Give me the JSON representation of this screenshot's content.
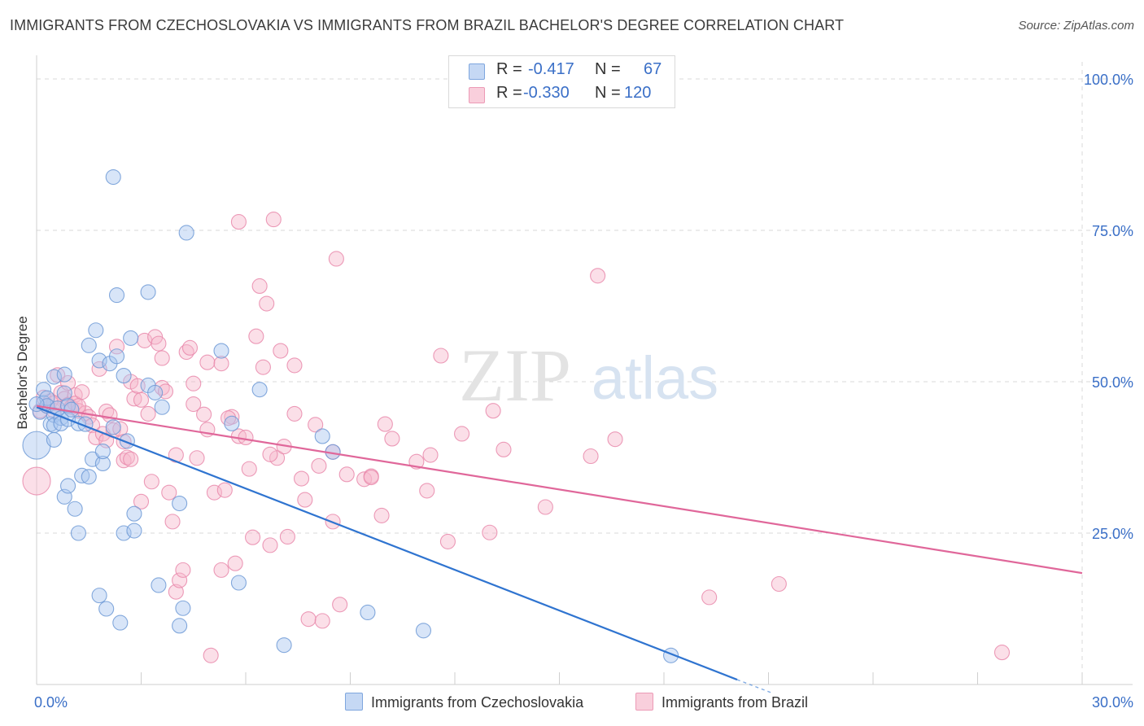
{
  "title": "IMMIGRANTS FROM CZECHOSLOVAKIA VS IMMIGRANTS FROM BRAZIL BACHELOR'S DEGREE CORRELATION CHART",
  "source": "Source: ZipAtlas.com",
  "watermark": {
    "zip": "ZIP",
    "atlas": "atlas"
  },
  "colors": {
    "blue_fill": "#a9c6ef",
    "blue_line": "#2f74d0",
    "blue_text": "#3a6fc7",
    "pink_fill": "#f6b9cc",
    "pink_line": "#e0679a",
    "grid": "#d8d8d8"
  },
  "legend": {
    "r_label": "R =",
    "n_label": "N =",
    "series": [
      {
        "r": "-0.417",
        "n": "67"
      },
      {
        "r": "-0.330",
        "n": "120"
      }
    ]
  },
  "chart_data": {
    "type": "scatter",
    "title": "IMMIGRANTS FROM CZECHOSLOVAKIA VS IMMIGRANTS FROM BRAZIL BACHELOR'S DEGREE CORRELATION CHART",
    "xlabel": "",
    "ylabel": "Bachelor's Degree",
    "xlim": [
      0,
      30
    ],
    "ylim": [
      0,
      100
    ],
    "x_tick_labels": [
      "0.0%",
      "30.0%"
    ],
    "y_tick_labels": [
      "25.0%",
      "50.0%",
      "75.0%",
      "100.0%"
    ],
    "y_ticks": [
      25,
      50,
      75,
      100
    ],
    "series": [
      {
        "name": "Immigrants from Czechoslovakia",
        "color": "#a9c6ef",
        "trend": {
          "x": [
            0,
            20.1
          ],
          "y": [
            45.8,
            0.8
          ]
        },
        "points": [
          [
            0.0,
            39.5
          ],
          [
            0.1,
            45.0
          ],
          [
            0.2,
            48.7
          ],
          [
            0.2,
            46.5
          ],
          [
            0.3,
            47.3
          ],
          [
            0.3,
            46.0
          ],
          [
            0.4,
            43.0
          ],
          [
            0.5,
            44.5
          ],
          [
            0.5,
            42.8
          ],
          [
            0.5,
            40.4
          ],
          [
            0.5,
            50.8
          ],
          [
            0.6,
            45.6
          ],
          [
            0.7,
            44.0
          ],
          [
            0.7,
            43.1
          ],
          [
            0.8,
            48.1
          ],
          [
            0.8,
            51.2
          ],
          [
            0.8,
            31.0
          ],
          [
            0.9,
            46.0
          ],
          [
            0.9,
            43.8
          ],
          [
            0.9,
            32.8
          ],
          [
            1.0,
            45.4
          ],
          [
            1.1,
            29.0
          ],
          [
            1.2,
            25.0
          ],
          [
            1.2,
            43.1
          ],
          [
            1.3,
            34.5
          ],
          [
            1.4,
            43.0
          ],
          [
            1.5,
            56.0
          ],
          [
            1.5,
            34.3
          ],
          [
            1.6,
            37.2
          ],
          [
            1.7,
            58.5
          ],
          [
            1.8,
            53.5
          ],
          [
            1.8,
            14.7
          ],
          [
            1.9,
            36.5
          ],
          [
            1.9,
            38.5
          ],
          [
            2.0,
            12.5
          ],
          [
            2.1,
            53.0
          ],
          [
            2.2,
            83.8
          ],
          [
            2.2,
            42.5
          ],
          [
            2.3,
            54.2
          ],
          [
            2.3,
            64.3
          ],
          [
            2.4,
            10.2
          ],
          [
            2.5,
            25.0
          ],
          [
            2.5,
            51.0
          ],
          [
            2.6,
            40.2
          ],
          [
            2.7,
            57.2
          ],
          [
            2.8,
            28.2
          ],
          [
            2.8,
            25.4
          ],
          [
            3.2,
            49.4
          ],
          [
            3.2,
            64.8
          ],
          [
            3.4,
            48.2
          ],
          [
            3.5,
            16.4
          ],
          [
            3.6,
            45.8
          ],
          [
            4.1,
            29.9
          ],
          [
            4.1,
            9.7
          ],
          [
            4.2,
            12.6
          ],
          [
            4.3,
            74.6
          ],
          [
            5.3,
            55.1
          ],
          [
            5.6,
            43.1
          ],
          [
            5.8,
            16.8
          ],
          [
            6.4,
            48.7
          ],
          [
            7.1,
            6.5
          ],
          [
            8.2,
            41.0
          ],
          [
            8.5,
            38.4
          ],
          [
            9.5,
            11.9
          ],
          [
            11.1,
            8.9
          ],
          [
            18.2,
            4.8
          ],
          [
            0.0,
            46.3
          ]
        ]
      },
      {
        "name": "Immigrants from Brazil",
        "color": "#f6b9cc",
        "trend": {
          "x": [
            0,
            30
          ],
          "y": [
            46.0,
            18.4
          ]
        },
        "points": [
          [
            0.0,
            33.6
          ],
          [
            0.1,
            45.2
          ],
          [
            0.2,
            47.4
          ],
          [
            0.3,
            46.0
          ],
          [
            0.4,
            46.8
          ],
          [
            0.5,
            45.2
          ],
          [
            0.6,
            51.1
          ],
          [
            0.7,
            48.2
          ],
          [
            0.8,
            47.2
          ],
          [
            0.9,
            49.8
          ],
          [
            0.9,
            46.2
          ],
          [
            1.0,
            45.8
          ],
          [
            1.1,
            47.8
          ],
          [
            1.1,
            46.4
          ],
          [
            1.2,
            45.2
          ],
          [
            1.3,
            48.3
          ],
          [
            1.4,
            44.8
          ],
          [
            1.5,
            44.2
          ],
          [
            1.6,
            42.8
          ],
          [
            1.7,
            40.8
          ],
          [
            1.8,
            52.1
          ],
          [
            1.9,
            41.4
          ],
          [
            2.0,
            40.3
          ],
          [
            2.0,
            45.1
          ],
          [
            2.1,
            44.5
          ],
          [
            2.2,
            42.0
          ],
          [
            2.3,
            55.8
          ],
          [
            2.4,
            42.2
          ],
          [
            2.5,
            40.1
          ],
          [
            2.5,
            37.0
          ],
          [
            2.6,
            37.5
          ],
          [
            2.7,
            50.0
          ],
          [
            2.8,
            47.2
          ],
          [
            2.9,
            49.3
          ],
          [
            3.0,
            47.0
          ],
          [
            3.0,
            30.2
          ],
          [
            3.1,
            56.8
          ],
          [
            3.2,
            44.7
          ],
          [
            3.3,
            33.5
          ],
          [
            3.4,
            57.4
          ],
          [
            3.5,
            56.3
          ],
          [
            3.6,
            49.0
          ],
          [
            3.6,
            53.9
          ],
          [
            3.7,
            48.4
          ],
          [
            3.8,
            31.7
          ],
          [
            3.9,
            26.9
          ],
          [
            4.0,
            15.3
          ],
          [
            4.0,
            37.9
          ],
          [
            4.1,
            17.2
          ],
          [
            4.2,
            18.9
          ],
          [
            4.3,
            54.9
          ],
          [
            4.4,
            55.6
          ],
          [
            4.5,
            49.7
          ],
          [
            4.5,
            46.3
          ],
          [
            4.6,
            37.4
          ],
          [
            4.8,
            44.6
          ],
          [
            4.9,
            53.2
          ],
          [
            4.9,
            42.1
          ],
          [
            5.0,
            4.8
          ],
          [
            5.1,
            31.7
          ],
          [
            5.3,
            53.0
          ],
          [
            5.3,
            18.9
          ],
          [
            5.4,
            32.1
          ],
          [
            5.6,
            44.2
          ],
          [
            5.7,
            20.0
          ],
          [
            5.8,
            41.0
          ],
          [
            5.8,
            76.4
          ],
          [
            6.0,
            40.8
          ],
          [
            6.1,
            35.6
          ],
          [
            6.2,
            24.3
          ],
          [
            6.3,
            57.5
          ],
          [
            6.4,
            65.8
          ],
          [
            6.5,
            52.4
          ],
          [
            6.6,
            62.9
          ],
          [
            6.7,
            23.0
          ],
          [
            6.8,
            76.8
          ],
          [
            6.9,
            37.4
          ],
          [
            7.0,
            55.1
          ],
          [
            7.1,
            39.3
          ],
          [
            7.2,
            24.4
          ],
          [
            7.4,
            44.7
          ],
          [
            7.4,
            52.7
          ],
          [
            7.6,
            34.0
          ],
          [
            7.7,
            30.5
          ],
          [
            7.8,
            10.8
          ],
          [
            8.0,
            42.9
          ],
          [
            8.1,
            36.1
          ],
          [
            8.2,
            10.5
          ],
          [
            8.5,
            38.4
          ],
          [
            8.5,
            26.9
          ],
          [
            8.6,
            70.3
          ],
          [
            8.7,
            13.2
          ],
          [
            8.9,
            34.7
          ],
          [
            9.4,
            33.9
          ],
          [
            9.6,
            34.4
          ],
          [
            9.9,
            27.9
          ],
          [
            10.0,
            43.0
          ],
          [
            10.2,
            40.6
          ],
          [
            10.9,
            36.8
          ],
          [
            11.2,
            32.0
          ],
          [
            11.3,
            37.9
          ],
          [
            11.6,
            54.3
          ],
          [
            11.8,
            23.6
          ],
          [
            12.2,
            41.4
          ],
          [
            13.0,
            25.1
          ],
          [
            13.1,
            45.2
          ],
          [
            13.4,
            38.8
          ],
          [
            14.6,
            29.3
          ],
          [
            15.9,
            37.7
          ],
          [
            16.1,
            67.5
          ],
          [
            16.6,
            40.5
          ],
          [
            19.3,
            14.4
          ],
          [
            21.3,
            16.6
          ],
          [
            27.7,
            5.3
          ],
          [
            0.5,
            46.5
          ],
          [
            1.2,
            46.0
          ],
          [
            2.7,
            37.2
          ],
          [
            5.5,
            44.0
          ],
          [
            6.7,
            38.0
          ],
          [
            9.6,
            34.2
          ]
        ]
      }
    ]
  },
  "bottom_legend": [
    {
      "label": "Immigrants from Czechoslovakia"
    },
    {
      "label": "Immigrants from Brazil"
    }
  ]
}
